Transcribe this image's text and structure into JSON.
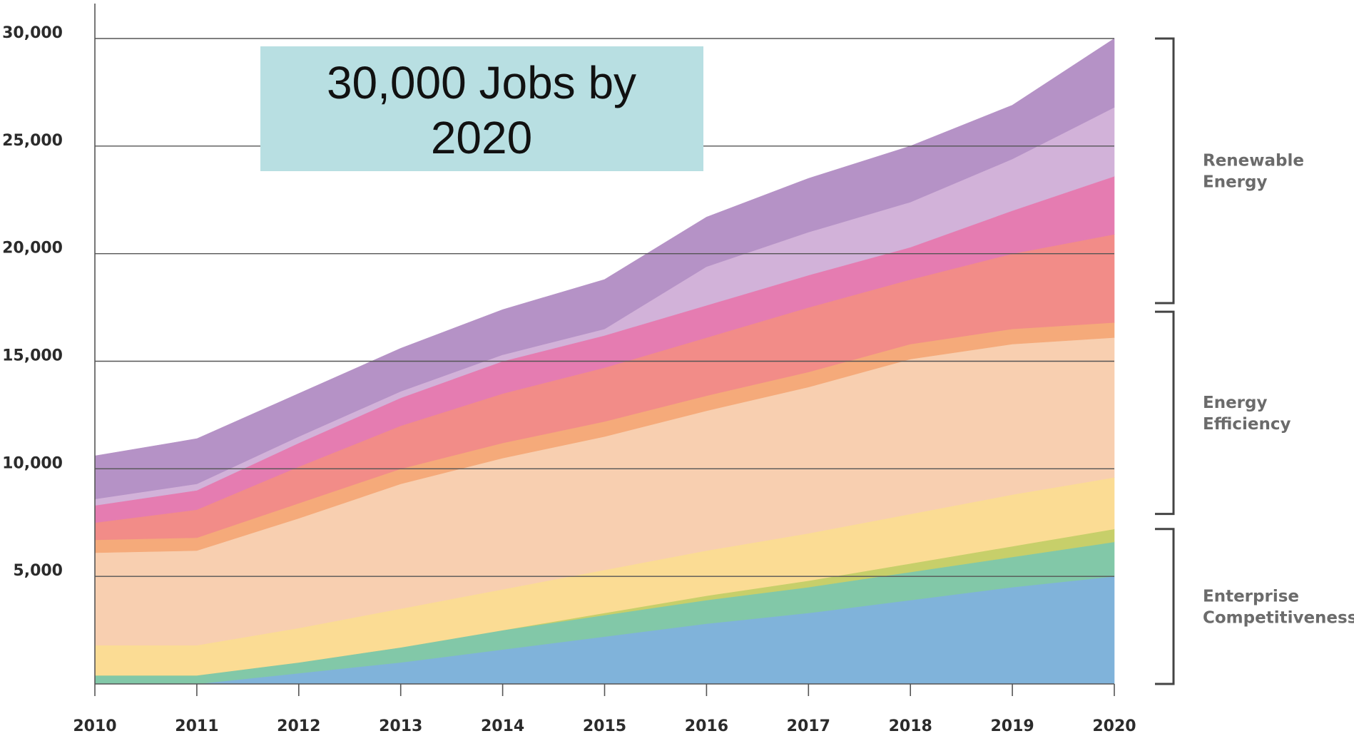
{
  "chart_data": {
    "type": "area",
    "stacked": true,
    "x": [
      "2010",
      "2011",
      "2012",
      "2013",
      "2014",
      "2015",
      "2016",
      "2017",
      "2018",
      "2019",
      "2020"
    ],
    "ylim": [
      0,
      30000
    ],
    "yticks": [
      5000,
      10000,
      15000,
      20000,
      25000,
      30000
    ],
    "ytick_labels": [
      "5,000",
      "10,000",
      "15,000",
      "20,000",
      "25,000",
      "30,000"
    ],
    "grid": true,
    "series": [
      {
        "color": "#80b3da",
        "values": [
          0,
          0,
          500,
          1000,
          1600,
          2200,
          2800,
          3300,
          3900,
          4500,
          5000
        ]
      },
      {
        "color": "#82c8a8",
        "values": [
          400,
          400,
          500,
          700,
          900,
          1000,
          1100,
          1200,
          1300,
          1400,
          1600
        ]
      },
      {
        "color": "#c7cf6a",
        "values": [
          0,
          0,
          0,
          0,
          0,
          100,
          200,
          300,
          400,
          500,
          600
        ]
      },
      {
        "color": "#fbdc94",
        "values": [
          1400,
          1400,
          1600,
          1800,
          1900,
          2000,
          2100,
          2200,
          2300,
          2400,
          2400
        ]
      },
      {
        "color": "#f8cfb0",
        "values": [
          4300,
          4400,
          5100,
          5800,
          6100,
          6200,
          6500,
          6800,
          7200,
          7000,
          6500
        ]
      },
      {
        "color": "#f5aa7a",
        "values": [
          600,
          600,
          700,
          700,
          700,
          700,
          700,
          700,
          700,
          700,
          700
        ]
      },
      {
        "color": "#f28c88",
        "values": [
          800,
          1300,
          1700,
          2000,
          2300,
          2500,
          2700,
          3000,
          3000,
          3500,
          4100
        ]
      },
      {
        "color": "#e57cb1",
        "values": [
          800,
          900,
          1100,
          1300,
          1500,
          1500,
          1500,
          1500,
          1500,
          2000,
          2700
        ]
      },
      {
        "color": "#d2b2d9",
        "values": [
          300,
          300,
          300,
          300,
          300,
          300,
          1800,
          2000,
          2100,
          2400,
          3200
        ]
      },
      {
        "color": "#b592c6",
        "values": [
          2000,
          2100,
          2000,
          2000,
          2100,
          2300,
          2300,
          2500,
          2600,
          2500,
          3200
        ]
      }
    ],
    "groups": [
      {
        "label_lines": [
          "Renewable",
          "Energy"
        ],
        "from": 17700,
        "to": 30000
      },
      {
        "label_lines": [
          "Energy",
          "Efficiency"
        ],
        "from": 7900,
        "to": 17300
      },
      {
        "label_lines": [
          "Enterprise",
          "Competitiveness"
        ],
        "from": 0,
        "to": 7200
      }
    ],
    "annotation": {
      "lines": [
        "30,000 Jobs by",
        "2020"
      ],
      "background": "#b8dfe2"
    }
  }
}
